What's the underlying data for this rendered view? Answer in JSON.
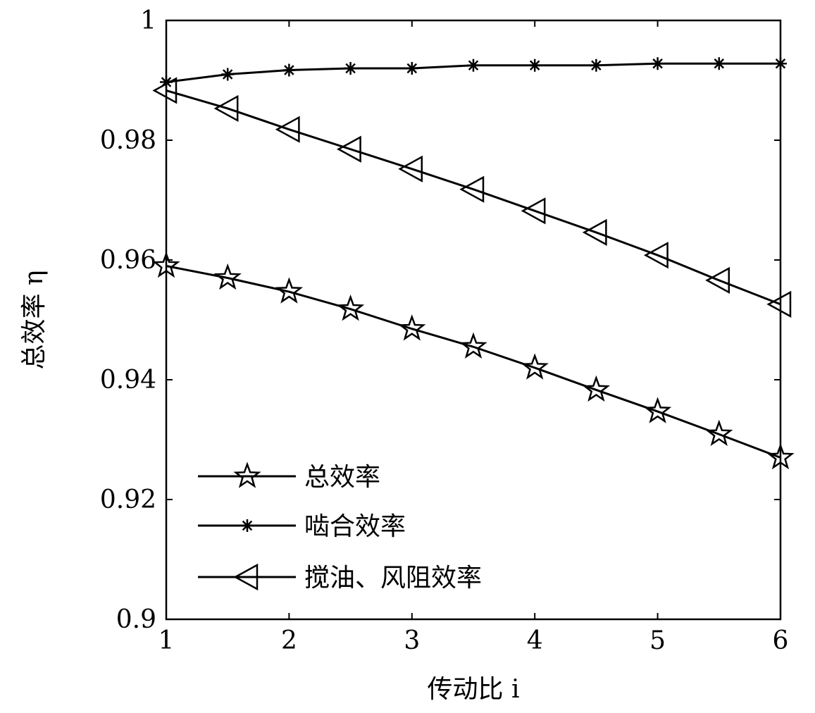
{
  "chart_data": {
    "type": "line",
    "xlabel": "传动比 i",
    "ylabel": "总效率 η",
    "xlim": [
      1,
      6
    ],
    "ylim": [
      0.9,
      1
    ],
    "xticks": [
      1,
      2,
      3,
      4,
      5,
      6
    ],
    "yticks": [
      0.9,
      0.92,
      0.94,
      0.96,
      0.98,
      1
    ],
    "ytick_labels": [
      "0.9",
      "0.92",
      "0.94",
      "0.96",
      "0.98",
      "1"
    ],
    "grid": false,
    "legend_position": "lower-left",
    "x": [
      1,
      1.5,
      2,
      2.5,
      3,
      3.5,
      4,
      4.5,
      5,
      5.5,
      6
    ],
    "series": [
      {
        "name": "总效率",
        "marker": "star",
        "values": [
          0.959,
          0.957,
          0.9547,
          0.9518,
          0.9485,
          0.9455,
          0.942,
          0.9383,
          0.9347,
          0.9309,
          0.927
        ]
      },
      {
        "name": "啮合效率",
        "marker": "asterisk",
        "values": [
          0.9897,
          0.991,
          0.9917,
          0.992,
          0.992,
          0.9925,
          0.9925,
          0.9925,
          0.9928,
          0.9928,
          0.9928
        ]
      },
      {
        "name": "搅油、风阻效率",
        "marker": "triangle-left",
        "values": [
          0.9883,
          0.9853,
          0.9818,
          0.9785,
          0.9752,
          0.9718,
          0.9682,
          0.9646,
          0.9608,
          0.9566,
          0.9526
        ]
      }
    ]
  }
}
